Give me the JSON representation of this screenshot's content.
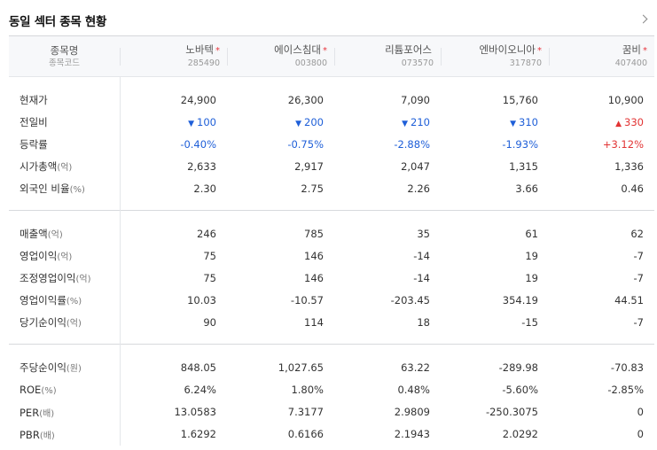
{
  "title": "동일 섹터 종목 현황",
  "header": {
    "label_line1": "종목명",
    "label_line2": "종목코드",
    "stocks": [
      {
        "name": "노바텍",
        "code": "285490",
        "star": "*"
      },
      {
        "name": "에이스침대",
        "code": "003800",
        "star": "*"
      },
      {
        "name": "리튬포어스",
        "code": "073570",
        "star": ""
      },
      {
        "name": "엔바이오니아",
        "code": "317870",
        "star": "*"
      },
      {
        "name": "꿈비",
        "code": "407400",
        "star": "*"
      }
    ]
  },
  "sections": [
    {
      "rows": [
        {
          "label": "현재가",
          "unit": "",
          "values": [
            "24,900",
            "26,300",
            "7,090",
            "15,760",
            "10,900"
          ]
        },
        {
          "label": "전일비",
          "unit": "",
          "type": "change",
          "values": [
            "100",
            "200",
            "210",
            "310",
            "330"
          ],
          "dirs": [
            "down",
            "down",
            "down",
            "down",
            "up"
          ],
          "arrows": [
            "▼",
            "▼",
            "▼",
            "▼",
            "▲"
          ]
        },
        {
          "label": "등락률",
          "unit": "",
          "type": "rate",
          "values": [
            "-0.40%",
            "-0.75%",
            "-2.88%",
            "-1.93%",
            "+3.12%"
          ],
          "dirs": [
            "down",
            "down",
            "down",
            "down",
            "up"
          ]
        },
        {
          "label": "시가총액",
          "unit": "(억)",
          "values": [
            "2,633",
            "2,917",
            "2,047",
            "1,315",
            "1,336"
          ]
        },
        {
          "label": "외국인 비율",
          "unit": "(%)",
          "values": [
            "2.30",
            "2.75",
            "2.26",
            "3.66",
            "0.46"
          ]
        }
      ]
    },
    {
      "rows": [
        {
          "label": "매출액",
          "unit": "(억)",
          "values": [
            "246",
            "785",
            "35",
            "61",
            "62"
          ]
        },
        {
          "label": "영업이익",
          "unit": "(억)",
          "values": [
            "75",
            "146",
            "-14",
            "19",
            "-7"
          ]
        },
        {
          "label": "조정영업이익",
          "unit": "(억)",
          "values": [
            "75",
            "146",
            "-14",
            "19",
            "-7"
          ]
        },
        {
          "label": "영업이익률",
          "unit": "(%)",
          "values": [
            "10.03",
            "-10.57",
            "-203.45",
            "354.19",
            "44.51"
          ]
        },
        {
          "label": "당기순이익",
          "unit": "(억)",
          "values": [
            "90",
            "114",
            "18",
            "-15",
            "-7"
          ]
        }
      ]
    },
    {
      "rows": [
        {
          "label": "주당순이익",
          "unit": "(원)",
          "values": [
            "848.05",
            "1,027.65",
            "63.22",
            "-289.98",
            "-70.83"
          ]
        },
        {
          "label": "ROE",
          "unit": "(%)",
          "values": [
            "6.24%",
            "1.80%",
            "0.48%",
            "-5.60%",
            "-2.85%"
          ]
        },
        {
          "label": "PER",
          "unit": "(배)",
          "values": [
            "13.0583",
            "7.3177",
            "2.9809",
            "-250.3075",
            "0"
          ]
        },
        {
          "label": "PBR",
          "unit": "(배)",
          "values": [
            "1.6292",
            "0.6166",
            "2.1943",
            "2.0292",
            "0"
          ]
        }
      ]
    }
  ]
}
